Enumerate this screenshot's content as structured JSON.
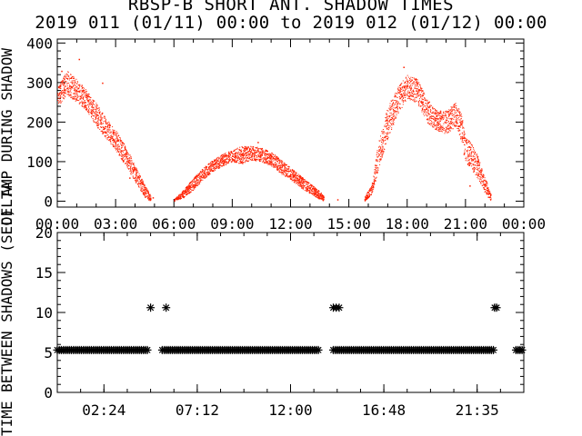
{
  "header": {
    "title": "RBSP-B SHORT ANT. SHADOW TIMES",
    "subtitle": "2019 011 (01/11) 00:00 to 2019 012 (01/12) 00:00"
  },
  "colors": {
    "background": "#ffffff",
    "axes": "#000000",
    "amp_points": "#ff2000",
    "interval_points": "#000000"
  },
  "chart_data": [
    {
      "type": "scatter",
      "ylabel": "AMP DURING SHADOW",
      "ylabel2": "DELTA",
      "y_ticks": [
        "0",
        "100",
        "200",
        "300",
        "400"
      ],
      "x_ticks": [
        "00:00",
        "03:00",
        "06:00",
        "09:00",
        "12:00",
        "15:00",
        "18:00",
        "21:00",
        "00:00"
      ],
      "xlim_hours": [
        0,
        24
      ],
      "ylim": [
        -15,
        410
      ],
      "grid": false,
      "series": [
        {
          "marker": "dot",
          "color": "#ff2000",
          "envelope": [
            [
              0.0,
              240,
              290
            ],
            [
              0.5,
              270,
              330
            ],
            [
              1.0,
              250,
              310
            ],
            [
              1.5,
              230,
              280
            ],
            [
              2.0,
              190,
              250
            ],
            [
              2.5,
              160,
              210
            ],
            [
              3.0,
              130,
              180
            ],
            [
              3.5,
              90,
              140
            ],
            [
              4.0,
              50,
              90
            ],
            [
              4.5,
              10,
              40
            ],
            [
              4.8,
              0,
              15
            ],
            [
              6.0,
              0,
              5
            ],
            [
              6.5,
              10,
              30
            ],
            [
              7.0,
              30,
              60
            ],
            [
              7.5,
              55,
              85
            ],
            [
              8.0,
              75,
              105
            ],
            [
              8.5,
              90,
              120
            ],
            [
              9.0,
              100,
              130
            ],
            [
              9.5,
              95,
              140
            ],
            [
              10.0,
              105,
              140
            ],
            [
              10.5,
              100,
              135
            ],
            [
              11.0,
              90,
              125
            ],
            [
              11.5,
              70,
              105
            ],
            [
              12.0,
              55,
              85
            ],
            [
              12.5,
              35,
              65
            ],
            [
              13.0,
              20,
              45
            ],
            [
              13.5,
              5,
              25
            ],
            [
              13.7,
              0,
              15
            ],
            [
              15.8,
              0,
              10
            ],
            [
              16.2,
              20,
              50
            ],
            [
              16.5,
              80,
              150
            ],
            [
              17.0,
              160,
              240
            ],
            [
              17.5,
              220,
              290
            ],
            [
              18.0,
              260,
              320
            ],
            [
              18.5,
              250,
              310
            ],
            [
              19.0,
              200,
              260
            ],
            [
              19.5,
              180,
              230
            ],
            [
              20.0,
              170,
              230
            ],
            [
              20.5,
              190,
              250
            ],
            [
              20.8,
              150,
              220
            ],
            [
              21.0,
              100,
              160
            ],
            [
              21.3,
              80,
              150
            ],
            [
              21.6,
              60,
              120
            ],
            [
              22.0,
              20,
              60
            ],
            [
              22.3,
              0,
              20
            ]
          ]
        }
      ]
    },
    {
      "type": "scatter",
      "ylabel": "TIME BETWEEN SHADOWS (SEC)",
      "y_ticks": [
        "0",
        "5",
        "10",
        "15",
        "20"
      ],
      "x_ticks": [
        "02:24",
        "07:12",
        "12:00",
        "16:48",
        "21:35"
      ],
      "xlim_hours": [
        0,
        24
      ],
      "ylim": [
        0,
        20
      ],
      "grid": false,
      "series": [
        {
          "marker": "asterisk",
          "color": "#000000",
          "runs": [
            {
              "x_start": 0.0,
              "x_end": 4.7,
              "y": 5.3
            },
            {
              "x_start": 5.4,
              "x_end": 13.5,
              "y": 5.3
            },
            {
              "x_start": 14.2,
              "x_end": 22.5,
              "y": 5.3
            },
            {
              "x_start": 23.6,
              "x_end": 24.0,
              "y": 5.3
            }
          ],
          "points": [
            {
              "x": 4.8,
              "y": 10.6
            },
            {
              "x": 5.6,
              "y": 10.6
            },
            {
              "x": 14.2,
              "y": 10.6
            },
            {
              "x": 14.35,
              "y": 10.6
            },
            {
              "x": 14.5,
              "y": 10.6
            },
            {
              "x": 22.5,
              "y": 10.6
            },
            {
              "x": 22.6,
              "y": 10.6
            }
          ]
        }
      ]
    }
  ]
}
